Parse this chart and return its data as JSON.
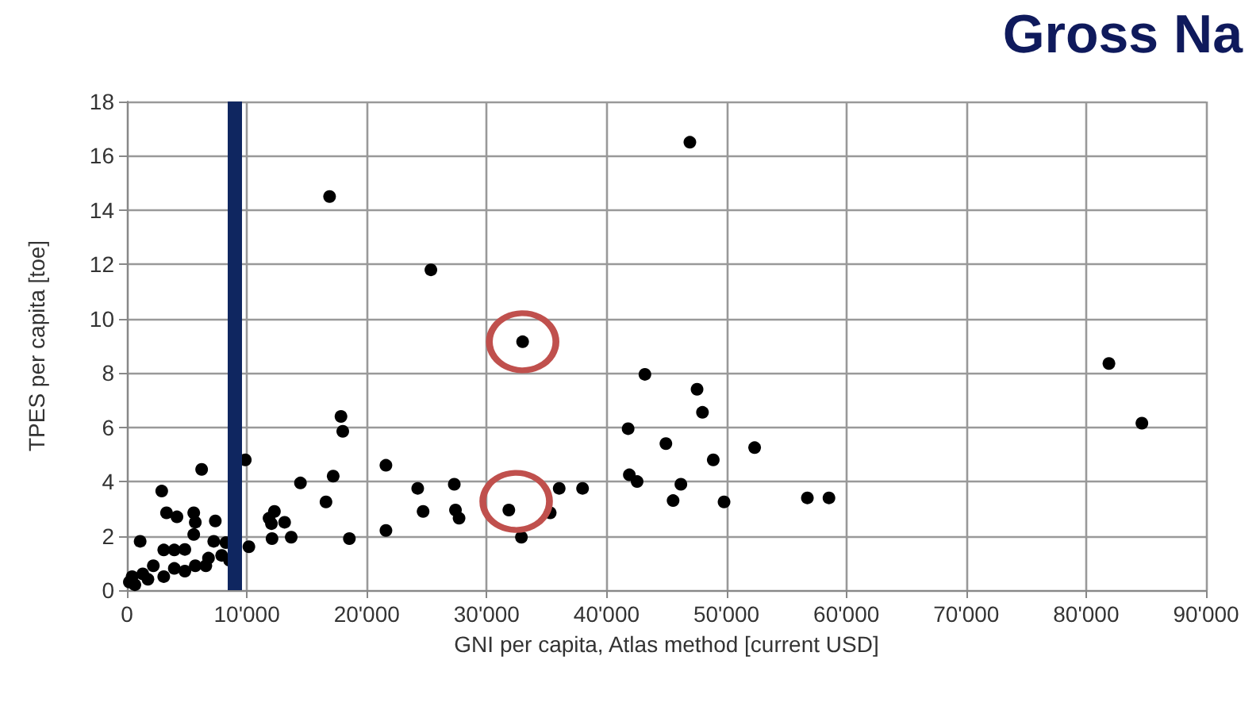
{
  "chart_data": {
    "type": "scatter",
    "title": "Gross Na",
    "xlabel": "GNI per capita, Atlas method [current USD]",
    "ylabel": "TPES per capita [toe]",
    "xlim": [
      0,
      90000
    ],
    "ylim": [
      0,
      18
    ],
    "xticks": [
      0,
      {
        "value": 10000,
        "label": "10'000"
      },
      {
        "value": 20000,
        "label": "20'000"
      },
      {
        "value": 30000,
        "label": "30'000"
      },
      {
        "value": 40000,
        "label": "40'000"
      },
      {
        "value": 50000,
        "label": "50'000"
      },
      {
        "value": 60000,
        "label": "60'000"
      },
      {
        "value": 70000,
        "label": "70'000"
      },
      {
        "value": 80000,
        "label": "80'000"
      },
      {
        "value": 90000,
        "label": "90'000"
      }
    ],
    "yticks": [
      0,
      2,
      4,
      6,
      8,
      10,
      12,
      14,
      16,
      18
    ],
    "grid": true,
    "marker": "circle",
    "ref_lines": [
      {
        "axis": "x",
        "value": 9000,
        "color": "#0f2660"
      }
    ],
    "series": [
      {
        "color": "#000000",
        "x": [
          16900,
          25350,
          33000,
          17850,
          18000,
          21600,
          14470,
          17200,
          16600,
          24250,
          27300,
          24700,
          27400,
          27700,
          31850,
          32900,
          35300,
          36050,
          38000,
          41800,
          41900,
          42550,
          43200,
          12100,
          13700,
          18550,
          21600,
          11850,
          12300,
          13150,
          12050,
          46950,
          47550,
          48000,
          44950,
          52350,
          48900,
          46200,
          45550,
          49800,
          56750,
          58550,
          81900,
          84650,
          6230,
          2900,
          3300,
          4170,
          5570,
          5700,
          7370,
          5570,
          1100,
          7240,
          8250,
          10170,
          9870,
          3070,
          3950,
          4830,
          7900,
          6580,
          5700,
          3950,
          2200,
          1320,
          430,
          660,
          1750,
          3070,
          4830,
          6800,
          8550,
          200
        ],
        "values": [
          14.5,
          11.8,
          9.15,
          6.4,
          5.85,
          4.6,
          3.95,
          4.2,
          3.25,
          3.75,
          3.9,
          2.9,
          2.95,
          2.65,
          2.95,
          1.95,
          2.85,
          3.75,
          3.75,
          5.95,
          4.25,
          4.0,
          7.95,
          1.9,
          1.95,
          1.9,
          2.2,
          2.65,
          2.9,
          2.5,
          2.45,
          16.5,
          7.4,
          6.55,
          5.4,
          5.25,
          4.8,
          3.9,
          3.3,
          3.25,
          3.4,
          3.4,
          8.35,
          6.15,
          4.45,
          3.65,
          2.85,
          2.7,
          2.85,
          2.5,
          2.55,
          2.05,
          1.8,
          1.8,
          1.75,
          1.6,
          4.8,
          1.48,
          1.48,
          1.5,
          1.28,
          0.9,
          0.9,
          0.8,
          0.9,
          0.6,
          0.5,
          0.2,
          0.4,
          0.5,
          0.7,
          1.18,
          1.1,
          0.3
        ]
      },
      {
        "color": "#c0504d",
        "x": [
          33000,
          32460
        ],
        "values": [
          9.15,
          3.27
        ]
      }
    ]
  }
}
